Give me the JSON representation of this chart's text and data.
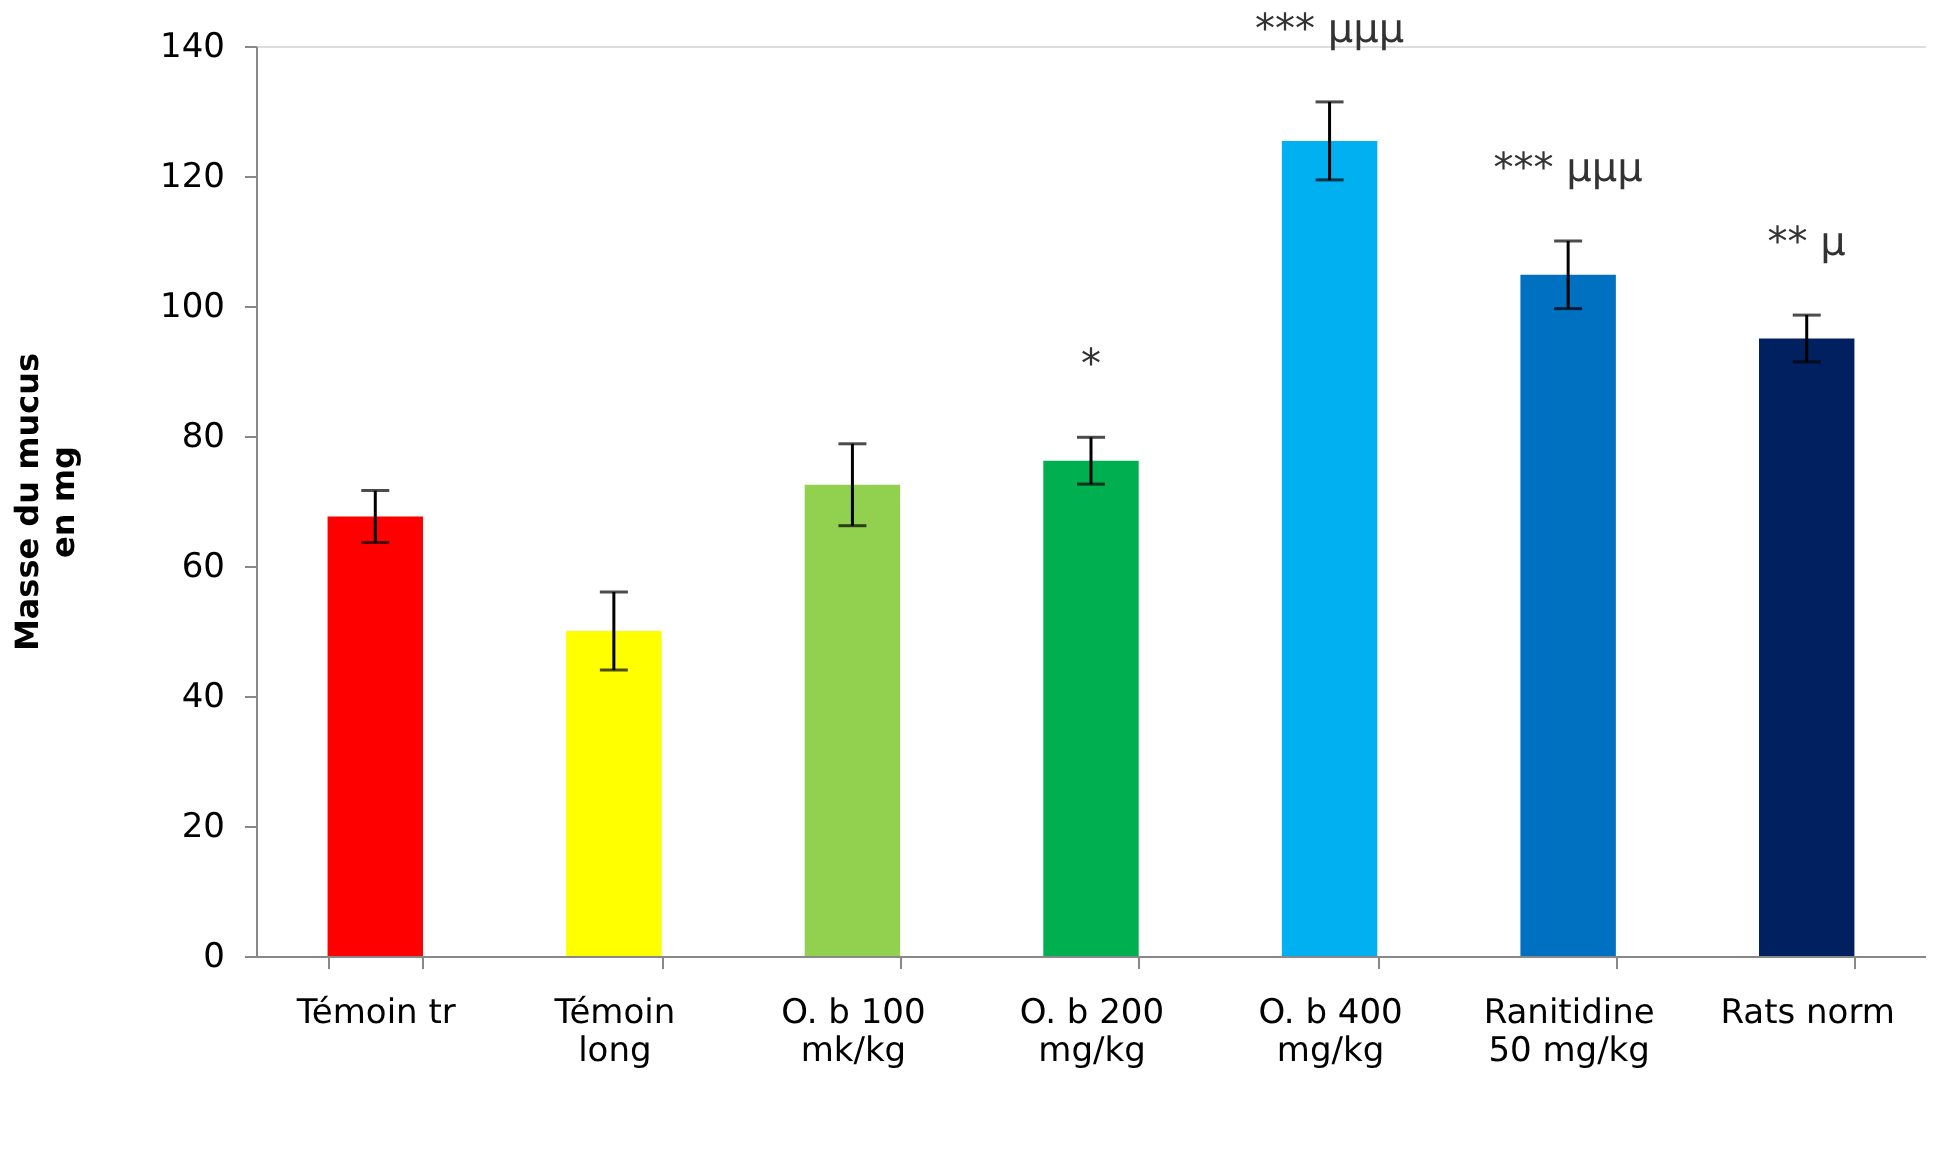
{
  "chart_data": {
    "type": "bar",
    "ylabel": "Masse du mucus\nen mg",
    "categories": [
      "Témoin tr",
      "Témoin\nlong",
      "O. b 100\nmk/kg",
      "O. b 200\nmg/kg",
      "O. b 400\nmg/kg",
      "Ranitidine\n50 mg/kg",
      "Rats norm"
    ],
    "values": [
      67.6,
      50,
      72.5,
      76.2,
      125.4,
      104.8,
      95
    ],
    "errors": [
      4,
      6,
      6.3,
      3.6,
      6,
      5.2,
      3.6
    ],
    "colors": [
      "#ff0000",
      "#ffff00",
      "#92d050",
      "#00b050",
      "#00b0f0",
      "#0070c0",
      "#002060"
    ],
    "ylim": [
      0,
      140
    ],
    "yticks": [
      0,
      20,
      40,
      60,
      80,
      100,
      120,
      140
    ],
    "grid": false,
    "annotations": [
      {
        "text": "*",
        "x": "O. b 200\nmg/kg",
        "y": 76.2
      },
      {
        "text": "*** μμμ",
        "x": "O. b 400\nmg/kg",
        "y": 125.4
      },
      {
        "text": "*** μμμ",
        "x": "Ranitidine\n50 mg/kg",
        "y": 104.8
      },
      {
        "text": "** μ",
        "x": "Rats norm",
        "y": 95
      }
    ]
  }
}
